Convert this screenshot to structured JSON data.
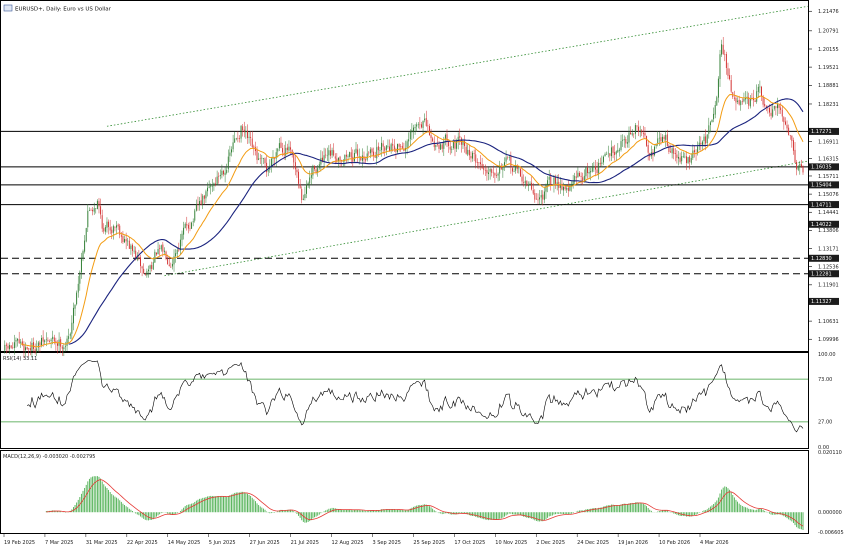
{
  "window": {
    "symbol_caption": "EURUSD+, Daily: Euro vs US Dollar"
  },
  "colors": {
    "background": "#ffffff",
    "bull_candle": "#2e7d32",
    "bear_candle": "#d32f2f",
    "ma_fast": "#f39c12",
    "ma_slow": "#1a237e",
    "channel": "#2e8b2e",
    "level_line": "#000000",
    "price_tag_bg": "#1c1c1c",
    "rsi_line": "#000000",
    "rsi_level": "#3a9d3a",
    "macd_hist": "#4caf50",
    "macd_signal": "#e53935",
    "grid": "#cccccc"
  },
  "chart_data": [
    {
      "type": "candlestick",
      "name": "price",
      "title": "EURUSD+, Daily: Euro vs US Dollar",
      "y_ticks": [
        "1.21476",
        "1.20791",
        "1.20155",
        "1.19521",
        "1.18881",
        "1.18231",
        "1.17271",
        "1.16911",
        "1.16315",
        "1.15711",
        "1.15076",
        "1.14441",
        "1.13806",
        "1.13171",
        "1.12536",
        "1.11901",
        "1.10631",
        "1.09996"
      ],
      "ylim": [
        1.0962,
        1.218
      ],
      "horizontal_levels": [
        {
          "value": 1.1727,
          "style": "solid",
          "tag": "1.17271"
        },
        {
          "value": 1.1603,
          "style": "solid",
          "tag": "1.16035"
        },
        {
          "value": 1.154,
          "style": "solid",
          "tag": "1.15404"
        },
        {
          "value": 1.1471,
          "style": "solid",
          "tag": "1.14711"
        },
        {
          "value": 1.1402,
          "style": "none",
          "tag": "1.14022"
        },
        {
          "value": 1.1283,
          "style": "dashed",
          "tag": "1.12830"
        },
        {
          "value": 1.1229,
          "style": "dashed",
          "tag": "1.12281"
        },
        {
          "value": 1.1132,
          "style": "none",
          "tag": "1.11327"
        }
      ],
      "channel": {
        "upper": [
          {
            "day": 64,
            "value": 1.1745
          },
          {
            "day": 503,
            "value": 1.2165
          }
        ],
        "lower": [
          {
            "day": 100,
            "value": 1.1222
          },
          {
            "day": 503,
            "value": 1.1623
          }
        ]
      },
      "indicators": [
        "EMA fast (orange)",
        "SMA slow (navy)"
      ],
      "date_ticks": [
        "19 Feb 2025",
        "7 Mar 2025",
        "31 Mar 2025",
        "22 Apr 2025",
        "14 May 2025",
        "5 Jun 2025",
        "27 Jun 2025",
        "21 Jul 2025",
        "12 Aug 2025",
        "3 Sep 2025",
        "25 Sep 2025",
        "17 Oct 2025",
        "10 Nov 2025",
        "2 Dec 2025",
        "24 Dec 2025",
        "19 Jan 2026",
        "10 Feb 2026",
        "4 Mar 2026"
      ],
      "anchors": [
        {
          "day": 0,
          "close": 1.096
        },
        {
          "day": 14,
          "close": 1.0975
        },
        {
          "day": 26,
          "close": 1.0988
        },
        {
          "day": 36,
          "close": 1.099
        },
        {
          "day": 40,
          "close": 1.1
        },
        {
          "day": 44,
          "close": 1.113
        },
        {
          "day": 52,
          "close": 1.145
        },
        {
          "day": 58,
          "close": 1.149
        },
        {
          "day": 62,
          "close": 1.138
        },
        {
          "day": 70,
          "close": 1.141
        },
        {
          "day": 80,
          "close": 1.1305
        },
        {
          "day": 88,
          "close": 1.122
        },
        {
          "day": 95,
          "close": 1.13
        },
        {
          "day": 104,
          "close": 1.129
        },
        {
          "day": 115,
          "close": 1.14
        },
        {
          "day": 128,
          "close": 1.152
        },
        {
          "day": 138,
          "close": 1.161
        },
        {
          "day": 148,
          "close": 1.174
        },
        {
          "day": 156,
          "close": 1.164
        },
        {
          "day": 164,
          "close": 1.158
        },
        {
          "day": 172,
          "close": 1.17
        },
        {
          "day": 178,
          "close": 1.166
        },
        {
          "day": 186,
          "close": 1.148
        },
        {
          "day": 194,
          "close": 1.16
        },
        {
          "day": 210,
          "close": 1.165
        },
        {
          "day": 224,
          "close": 1.164
        },
        {
          "day": 240,
          "close": 1.169
        },
        {
          "day": 252,
          "close": 1.168
        },
        {
          "day": 262,
          "close": 1.177
        },
        {
          "day": 268,
          "close": 1.168
        },
        {
          "day": 278,
          "close": 1.17
        },
        {
          "day": 290,
          "close": 1.166
        },
        {
          "day": 300,
          "close": 1.16
        },
        {
          "day": 312,
          "close": 1.162
        },
        {
          "day": 322,
          "close": 1.158
        },
        {
          "day": 334,
          "close": 1.149
        },
        {
          "day": 346,
          "close": 1.156
        },
        {
          "day": 354,
          "close": 1.153
        },
        {
          "day": 362,
          "close": 1.158
        },
        {
          "day": 374,
          "close": 1.162
        },
        {
          "day": 386,
          "close": 1.17
        },
        {
          "day": 396,
          "close": 1.174
        },
        {
          "day": 404,
          "close": 1.167
        },
        {
          "day": 414,
          "close": 1.17
        },
        {
          "day": 420,
          "close": 1.164
        },
        {
          "day": 428,
          "close": 1.162
        },
        {
          "day": 440,
          "close": 1.17
        },
        {
          "day": 446,
          "close": 1.188
        },
        {
          "day": 449,
          "close": 1.205
        },
        {
          "day": 453,
          "close": 1.193
        },
        {
          "day": 458,
          "close": 1.182
        },
        {
          "day": 466,
          "close": 1.18
        },
        {
          "day": 472,
          "close": 1.187
        },
        {
          "day": 478,
          "close": 1.178
        },
        {
          "day": 486,
          "close": 1.179
        },
        {
          "day": 492,
          "close": 1.173
        },
        {
          "day": 496,
          "close": 1.162
        },
        {
          "day": 500,
          "close": 1.1605
        }
      ]
    },
    {
      "type": "line",
      "name": "rsi",
      "label": "RSI(14) 33.11",
      "y_ticks": [
        "100.00",
        "73.00",
        "27.00",
        "0.00"
      ],
      "ylim": [
        0,
        100
      ],
      "levels": [
        73,
        27
      ],
      "last_value": 33.11
    },
    {
      "type": "bar",
      "name": "macd",
      "label": "MACD(12,26,9) -0.003020 -0.002795",
      "y_ticks": [
        "0.020110",
        "0.000000",
        "-0.006605"
      ],
      "ylim": [
        -0.006605,
        0.02011
      ]
    }
  ]
}
